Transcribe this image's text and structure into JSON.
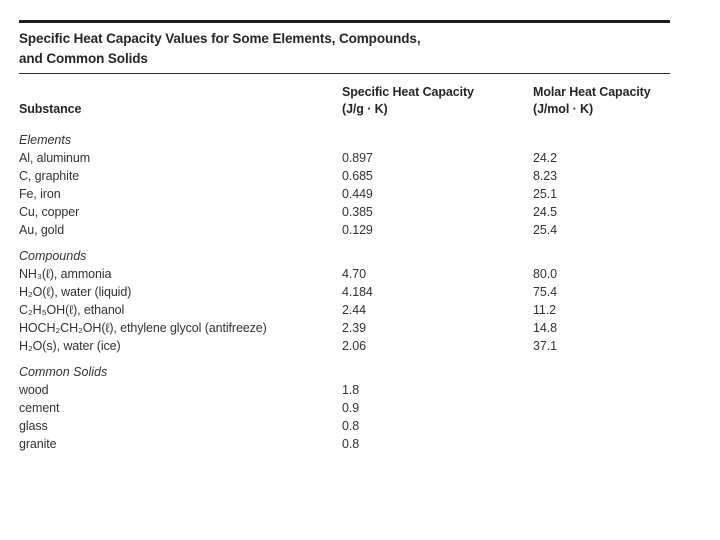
{
  "table": {
    "title_line1": "Specific Heat Capacity Values for Some Elements, Compounds,",
    "title_line2": "and Common Solids",
    "columns": {
      "substance": "Substance",
      "specific_line1": "Specific Heat Capacity",
      "specific_line2": "(J/g · K)",
      "molar_line1": "Molar Heat Capacity",
      "molar_line2": "(J/mol · K)"
    },
    "sections": [
      {
        "label": "Elements",
        "rows": [
          {
            "name": "Al, aluminum",
            "specific": "0.897",
            "molar": "24.2"
          },
          {
            "name": "C, graphite",
            "specific": "0.685",
            "molar": "8.23"
          },
          {
            "name": "Fe, iron",
            "specific": "0.449",
            "molar": "25.1"
          },
          {
            "name": "Cu, copper",
            "specific": "0.385",
            "molar": "24.5"
          },
          {
            "name": "Au, gold",
            "specific": "0.129",
            "molar": "25.4"
          }
        ]
      },
      {
        "label": "Compounds",
        "rows": [
          {
            "name": "NH₃(ℓ), ammonia",
            "specific": "4.70",
            "molar": "80.0"
          },
          {
            "name": "H₂O(ℓ), water (liquid)",
            "specific": "4.184",
            "molar": "75.4"
          },
          {
            "name": "C₂H₅OH(ℓ), ethanol",
            "specific": "2.44",
            "molar": "11.2"
          },
          {
            "name": "HOCH₂CH₂OH(ℓ), ethylene glycol (antifreeze)",
            "specific": "2.39",
            "molar": "14.8"
          },
          {
            "name": "H₂O(s), water (ice)",
            "specific": "2.06",
            "molar": "37.1"
          }
        ]
      },
      {
        "label": "Common Solids",
        "rows": [
          {
            "name": "wood",
            "specific": "1.8",
            "molar": ""
          },
          {
            "name": "cement",
            "specific": "0.9",
            "molar": ""
          },
          {
            "name": "glass",
            "specific": "0.8",
            "molar": ""
          },
          {
            "name": "granite",
            "specific": "0.8",
            "molar": ""
          }
        ]
      }
    ],
    "colors": {
      "rule": "#1d1d1d",
      "heading_text": "#262626",
      "body_text": "#333333",
      "background": "#ffffff"
    }
  }
}
